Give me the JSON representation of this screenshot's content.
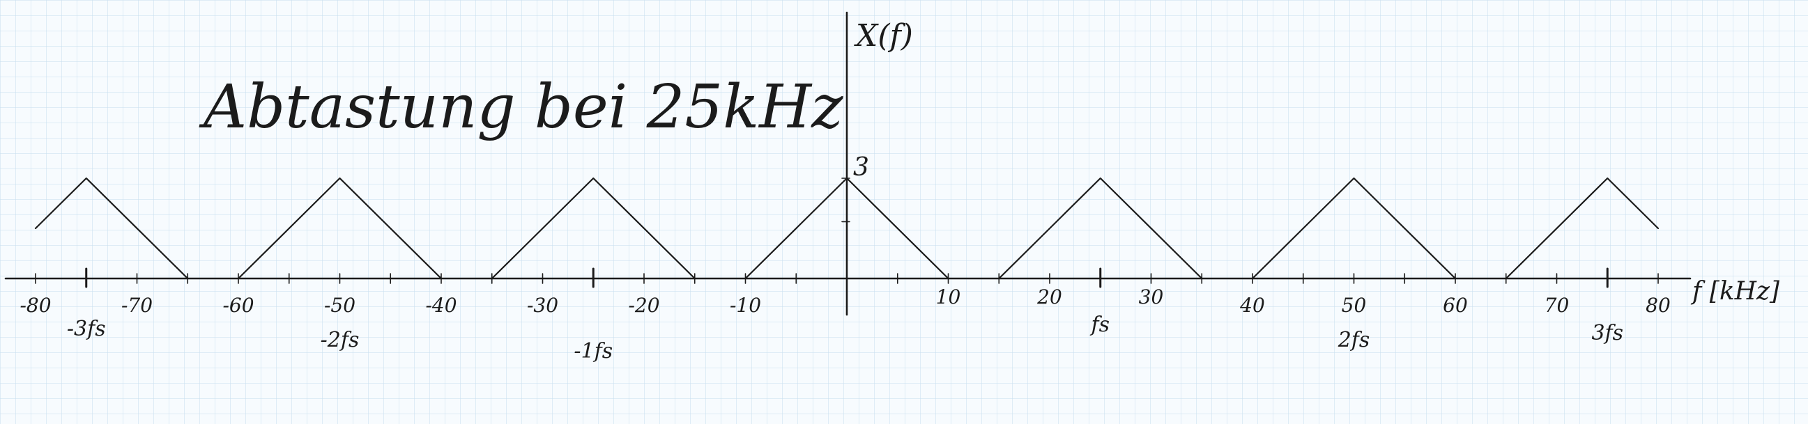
{
  "title": "Abtastung bei 25kHz",
  "y_axis_label": "X(f)",
  "x_axis_label": "f [kHz]",
  "peak_label": "3",
  "sampling_frequency_khz": 25,
  "x_ticks": [
    {
      "value": -80,
      "label": "-80"
    },
    {
      "value": -70,
      "label": "-70"
    },
    {
      "value": -60,
      "label": "-60"
    },
    {
      "value": -50,
      "label": "-50"
    },
    {
      "value": -40,
      "label": "-40"
    },
    {
      "value": -30,
      "label": "-30"
    },
    {
      "value": -20,
      "label": "-20"
    },
    {
      "value": -10,
      "label": "-10"
    },
    {
      "value": 10,
      "label": "10"
    },
    {
      "value": 20,
      "label": "20"
    },
    {
      "value": 30,
      "label": "30"
    },
    {
      "value": 40,
      "label": "40"
    },
    {
      "value": 50,
      "label": "50"
    },
    {
      "value": 60,
      "label": "60"
    },
    {
      "value": 70,
      "label": "70"
    },
    {
      "value": 80,
      "label": "80"
    }
  ],
  "fs_multiples": [
    {
      "value": -75,
      "label": "-3fs"
    },
    {
      "value": -50,
      "label": "-2fs"
    },
    {
      "value": -25,
      "label": "-1fs"
    },
    {
      "value": 25,
      "label": "fs"
    },
    {
      "value": 50,
      "label": "2fs"
    },
    {
      "value": 75,
      "label": "3fs"
    }
  ],
  "spectrum": {
    "peak_height": 3,
    "half_width_khz": 10,
    "center_frequencies_khz": [
      -75,
      -50,
      -25,
      0,
      25,
      50,
      75
    ],
    "visible_range_khz": [
      -80,
      80
    ]
  }
}
